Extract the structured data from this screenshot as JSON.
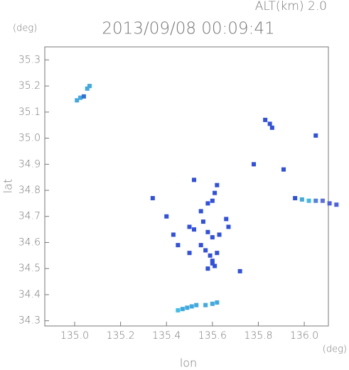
{
  "chart_data": {
    "type": "scatter",
    "title": "2013/09/08 00:09:41",
    "subtitle": "ALT(km) 2.0",
    "y_unit": "(deg)",
    "x_unit": "(deg)",
    "x_label": "lon",
    "y_label": "lat",
    "xlim": [
      134.87,
      136.105
    ],
    "ylim": [
      34.28,
      35.35
    ],
    "xticks": [
      {
        "value": 135,
        "label": "135.0"
      },
      135.2,
      135.4,
      135.6,
      135.8,
      {
        "value": 136,
        "label": "136.0"
      }
    ],
    "yticks": [
      34.3,
      34.4,
      34.5,
      34.6,
      34.7,
      34.8,
      34.9,
      {
        "value": 35,
        "label": "35.0"
      },
      35.1,
      35.2,
      35.3
    ],
    "x": [
      135.01,
      135.025,
      135.04,
      135.055,
      135.065,
      135.85,
      135.83,
      135.86,
      136.05,
      135.78,
      135.91,
      135.96,
      135.99,
      136.02,
      136.05,
      136.08,
      136.11,
      136.14,
      135.62,
      135.61,
      135.6,
      135.58,
      135.55,
      135.4,
      135.43,
      135.5,
      135.52,
      135.56,
      135.58,
      135.6,
      135.63,
      135.66,
      135.67,
      135.45,
      135.5,
      135.55,
      135.57,
      135.59,
      135.6,
      135.62,
      135.58,
      135.6,
      135.61,
      135.72,
      135.34,
      135.52,
      135.45,
      135.47,
      135.49,
      135.51,
      135.53,
      135.57,
      135.6,
      135.62
    ],
    "values": [
      35.145,
      35.155,
      35.16,
      35.19,
      35.2,
      35.055,
      35.07,
      35.04,
      35.01,
      34.9,
      34.88,
      34.77,
      34.765,
      34.76,
      34.76,
      34.76,
      34.75,
      34.745,
      34.82,
      34.79,
      34.76,
      34.75,
      34.72,
      34.7,
      34.63,
      34.66,
      34.65,
      34.68,
      34.64,
      34.62,
      34.63,
      34.69,
      34.66,
      34.59,
      34.56,
      34.59,
      34.57,
      34.55,
      34.53,
      34.56,
      34.5,
      34.52,
      34.51,
      34.49,
      34.77,
      34.84,
      34.34,
      34.345,
      34.35,
      34.355,
      34.36,
      34.36,
      34.365,
      34.37
    ],
    "colors": [
      "#3fa9e0",
      "#3fa9e0",
      "#2f70d8",
      "#3fa9e0",
      "#3fa9e0",
      "#2f50e0",
      "#2f50e0",
      "#2f50e0",
      "#2f50e0",
      "#2f50e0",
      "#2f50e0",
      "#2f50e0",
      "#3fa9e0",
      "#3fb9e8",
      "#5080e8",
      "#5a70e0",
      "#4a60e0",
      "#4a60e0",
      "#2f50e0",
      "#2f50e0",
      "#2f50e0",
      "#2f50e0",
      "#2f50e0",
      "#2f50e0",
      "#2f50e0",
      "#2f50e0",
      "#2f50e0",
      "#2f50e0",
      "#2f50e0",
      "#2f50e0",
      "#2f50e0",
      "#2f50e0",
      "#2f50e0",
      "#2f50e0",
      "#2f50e0",
      "#2f50e0",
      "#2f50e0",
      "#2f50e0",
      "#2f50e0",
      "#2f50e0",
      "#2f50e0",
      "#2f50e0",
      "#2f50e0",
      "#2f50e0",
      "#2f50e0",
      "#2f50e0",
      "#3fc0e8",
      "#3fa9e0",
      "#3fa9e0",
      "#3fa9e0",
      "#3fa9e0",
      "#3fa9e0",
      "#3fa9e0",
      "#3fa9e0"
    ]
  }
}
